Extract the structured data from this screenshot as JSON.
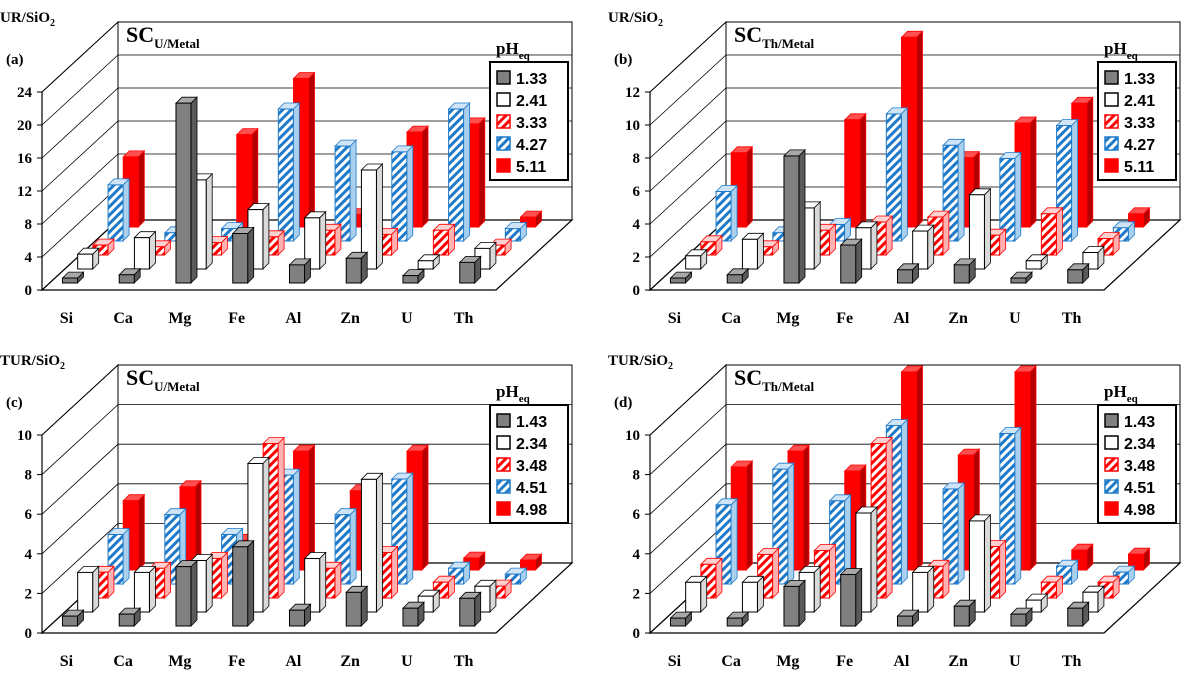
{
  "colors": {
    "gray": "#808080",
    "white": "#ffffff",
    "red": "#ff0000",
    "hatch_red": "#ff0000",
    "hatch_blue": "#1f7ac9",
    "axis": "#000000"
  },
  "chart_data": [
    {
      "type": "bar",
      "panel_label": "(a)",
      "title_main": "SC",
      "title_sub": "U/Metal",
      "ylabel_main": "UR/SiO",
      "ylabel_sub": "2",
      "legend_title_main": "pH",
      "legend_title_sub": "eq",
      "categories": [
        "Si",
        "Ca",
        "Mg",
        "Fe",
        "Al",
        "Zn",
        "U",
        "Th"
      ],
      "yticks": [
        "0",
        "4",
        "8",
        "12",
        "16",
        "20",
        "24"
      ],
      "ylim": [
        0,
        24
      ],
      "series": [
        {
          "name": "1.33",
          "style": "gray",
          "values": [
            0.6,
            1.0,
            21.8,
            6.0,
            2.2,
            3.0,
            0.9,
            2.5
          ]
        },
        {
          "name": "2.41",
          "style": "white",
          "values": [
            1.8,
            3.8,
            10.8,
            7.2,
            6.2,
            12.0,
            1.0,
            2.5
          ]
        },
        {
          "name": "3.33",
          "style": "hatch-red",
          "values": [
            1.2,
            1.0,
            1.5,
            2.2,
            3.0,
            2.5,
            3.0,
            1.2
          ]
        },
        {
          "name": "4.27",
          "style": "hatch-blue",
          "values": [
            6.8,
            1.0,
            1.5,
            16.0,
            11.5,
            10.8,
            16.0,
            1.5
          ]
        },
        {
          "name": "5.11",
          "style": "red",
          "values": [
            8.5,
            1.0,
            11.2,
            18.0,
            1.5,
            11.5,
            12.5,
            1.2
          ]
        }
      ]
    },
    {
      "type": "bar",
      "panel_label": "(b)",
      "title_main": "SC",
      "title_sub": "Th/Metal",
      "ylabel_main": "UR/SiO",
      "ylabel_sub": "2",
      "legend_title_main": "pH",
      "legend_title_sub": "eq",
      "categories": [
        "Si",
        "Ca",
        "Mg",
        "Fe",
        "Al",
        "Zn",
        "U",
        "Th"
      ],
      "yticks": [
        "0",
        "2",
        "4",
        "6",
        "8",
        "10",
        "12"
      ],
      "ylim": [
        0,
        12
      ],
      "series": [
        {
          "name": "1.33",
          "style": "gray",
          "values": [
            0.3,
            0.5,
            7.7,
            2.3,
            0.8,
            1.1,
            0.3,
            0.8
          ]
        },
        {
          "name": "2.41",
          "style": "white",
          "values": [
            0.8,
            1.8,
            3.7,
            2.5,
            2.3,
            4.5,
            0.5,
            1.0
          ]
        },
        {
          "name": "3.33",
          "style": "hatch-red",
          "values": [
            0.8,
            0.5,
            1.5,
            2.0,
            2.3,
            1.2,
            2.5,
            1.0
          ]
        },
        {
          "name": "4.27",
          "style": "hatch-blue",
          "values": [
            3.0,
            0.5,
            1.0,
            7.7,
            5.8,
            5.0,
            7.0,
            0.8
          ]
        },
        {
          "name": "5.11",
          "style": "red",
          "values": [
            4.5,
            0.5,
            6.5,
            11.5,
            4.2,
            6.3,
            7.5,
            0.8
          ]
        }
      ]
    },
    {
      "type": "bar",
      "panel_label": "(c)",
      "title_main": "SC",
      "title_sub": "U/Metal",
      "ylabel_main": "TUR/SiO",
      "ylabel_sub": "2",
      "legend_title_main": "pH",
      "legend_title_sub": "eq",
      "categories": [
        "Si",
        "Ca",
        "Mg",
        "Fe",
        "Al",
        "Zn",
        "U",
        "Th"
      ],
      "yticks": [
        "0",
        "2",
        "4",
        "6",
        "8",
        "10"
      ],
      "ylim": [
        0,
        10
      ],
      "series": [
        {
          "name": "1.43",
          "style": "gray",
          "values": [
            0.5,
            0.6,
            3.0,
            4.0,
            0.8,
            1.7,
            0.9,
            1.4
          ]
        },
        {
          "name": "2.34",
          "style": "white",
          "values": [
            2.0,
            2.0,
            2.6,
            7.5,
            2.7,
            6.7,
            0.8,
            1.3
          ]
        },
        {
          "name": "3.48",
          "style": "hatch-red",
          "values": [
            1.3,
            1.5,
            2.0,
            7.8,
            1.5,
            2.3,
            0.8,
            0.6
          ]
        },
        {
          "name": "4.51",
          "style": "hatch-blue",
          "values": [
            2.5,
            3.5,
            2.5,
            5.5,
            3.5,
            5.3,
            0.8,
            0.5
          ]
        },
        {
          "name": "4.98",
          "style": "red",
          "values": [
            3.5,
            4.2,
            1.5,
            6.0,
            4.0,
            6.0,
            0.6,
            0.5
          ]
        }
      ]
    },
    {
      "type": "bar",
      "panel_label": "(d)",
      "title_main": "SC",
      "title_sub": "Th/Metal",
      "ylabel_main": "TUR/SiO",
      "ylabel_sub": "2",
      "legend_title_main": "pH",
      "legend_title_sub": "eq",
      "categories": [
        "Si",
        "Ca",
        "Mg",
        "Fe",
        "Al",
        "Zn",
        "U",
        "Th"
      ],
      "yticks": [
        "0",
        "2",
        "4",
        "6",
        "8",
        "10"
      ],
      "ylim": [
        0,
        10
      ],
      "series": [
        {
          "name": "1.43",
          "style": "gray",
          "values": [
            0.4,
            0.4,
            2.0,
            2.6,
            0.5,
            1.0,
            0.6,
            0.9
          ]
        },
        {
          "name": "2.34",
          "style": "white",
          "values": [
            1.5,
            1.5,
            2.0,
            5.0,
            2.0,
            4.6,
            0.6,
            1.0
          ]
        },
        {
          "name": "3.48",
          "style": "hatch-red",
          "values": [
            1.7,
            2.2,
            2.4,
            7.8,
            1.6,
            2.6,
            0.8,
            0.8
          ]
        },
        {
          "name": "4.51",
          "style": "hatch-blue",
          "values": [
            4.0,
            5.8,
            4.2,
            8.0,
            4.8,
            7.6,
            0.9,
            0.6
          ]
        },
        {
          "name": "4.98",
          "style": "red",
          "values": [
            5.2,
            6.0,
            5.0,
            10.0,
            5.8,
            10.0,
            1.0,
            0.8
          ]
        }
      ]
    }
  ]
}
